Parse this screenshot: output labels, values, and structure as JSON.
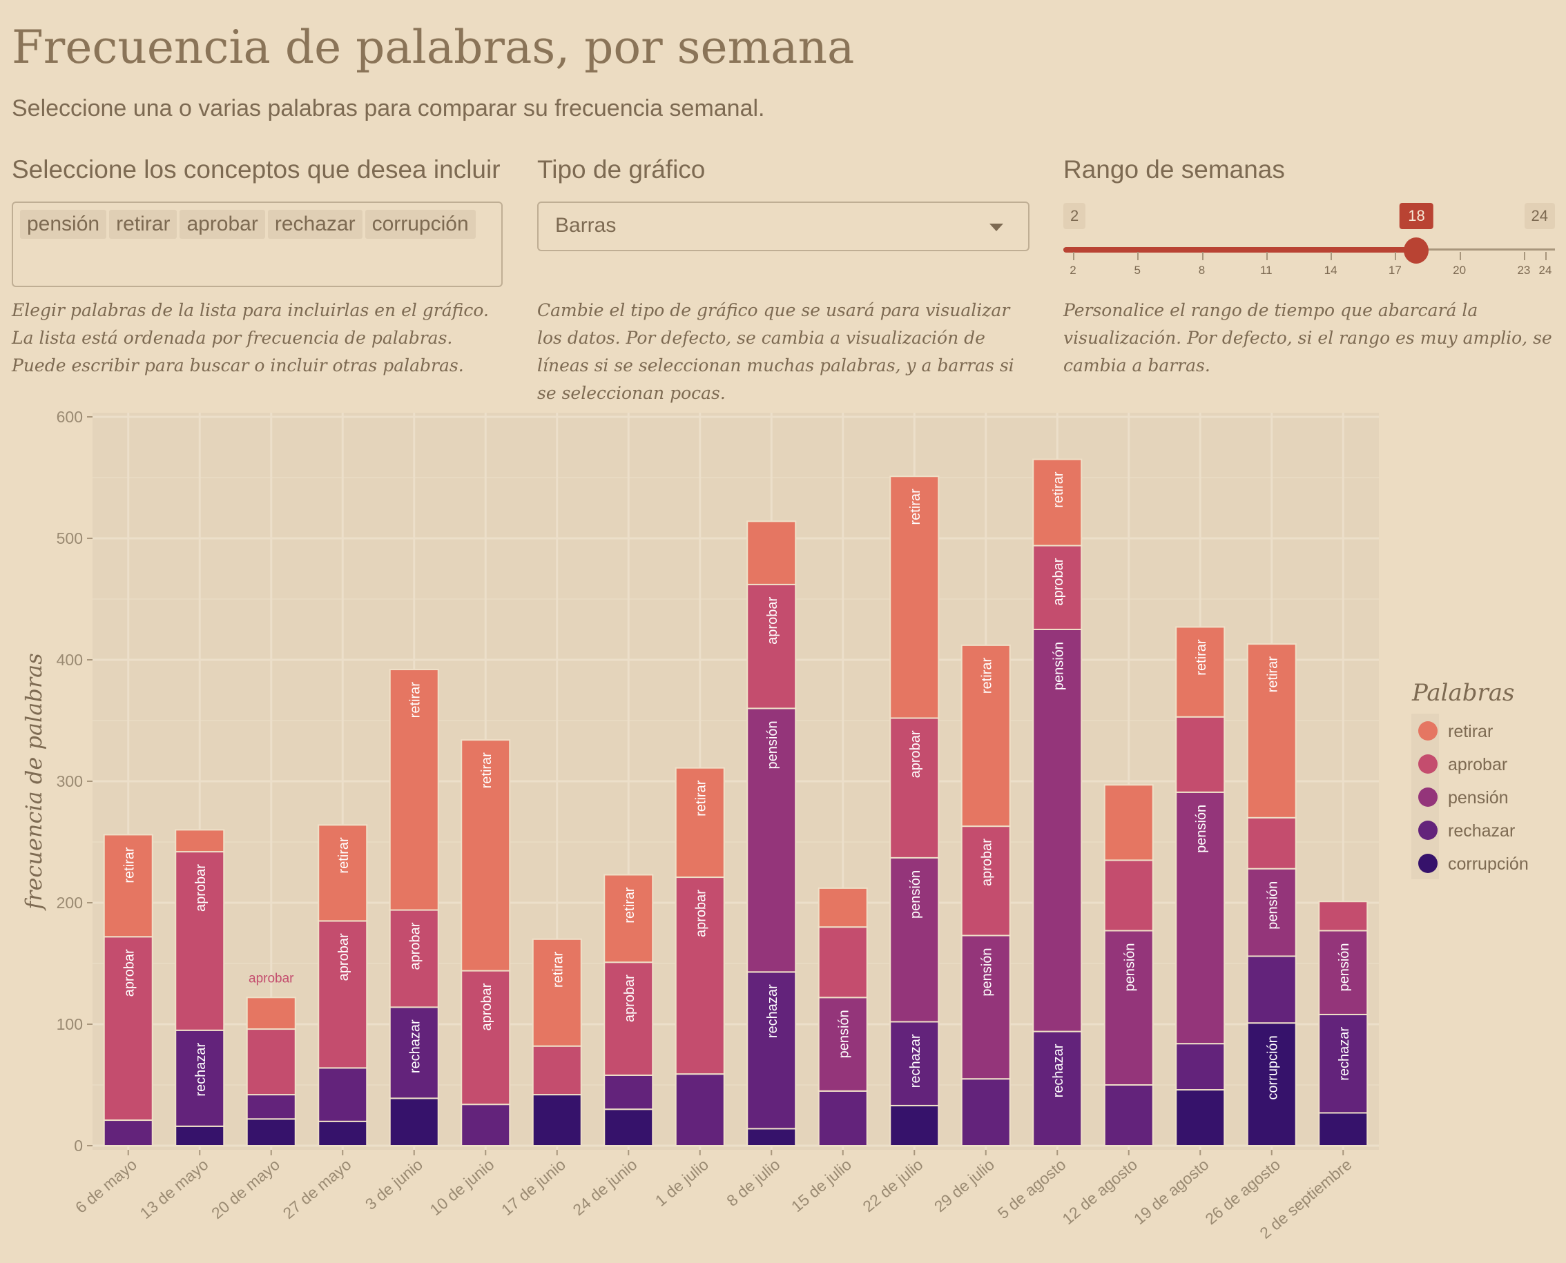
{
  "header": {
    "title": "Frecuencia de palabras, por semana",
    "subtitle": "Seleccione una o varias palabras para comparar su frecuencia semanal."
  },
  "controls": {
    "concepts": {
      "label": "Seleccione los conceptos que desea incluir",
      "selected": [
        "pensión",
        "retirar",
        "aprobar",
        "rechazar",
        "corrupción"
      ],
      "help": "Elegir palabras de la lista para incluirlas en el gráfico. La lista está ordenada por frecuencia de palabras. Puede escribir para buscar o incluir otras palabras."
    },
    "chart_type": {
      "label": "Tipo de gráfico",
      "value": "Barras",
      "help": "Cambie el tipo de gráfico que se usará para visualizar los datos. Por defecto, se cambia a visualización de líneas si se seleccionan muchas palabras, y a barras si se seleccionan pocas."
    },
    "week_range": {
      "label": "Rango de semanas",
      "min": 2,
      "max": 24,
      "value": 18,
      "min_label": "2",
      "max_label": "24",
      "value_label": "18",
      "ticks": [
        "2",
        "5",
        "8",
        "11",
        "14",
        "17",
        "20",
        "23",
        "24"
      ],
      "help": "Personalice el rango de tiempo que abarcará la visualización. Por defecto, si el rango es muy amplio, se cambia a barras."
    }
  },
  "chart_data": {
    "type": "bar",
    "stacked": true,
    "title": "",
    "xlabel": "",
    "ylabel": "frecuencia de palabras",
    "ylim": [
      0,
      600
    ],
    "yticks": [
      "0",
      "100",
      "200",
      "300",
      "400",
      "500",
      "600"
    ],
    "grid": true,
    "legend": {
      "title": "Palabras",
      "position": "right"
    },
    "categories": [
      "6 de mayo",
      "13 de mayo",
      "20 de mayo",
      "27 de mayo",
      "3 de junio",
      "10 de junio",
      "17 de junio",
      "24 de junio",
      "1 de julio",
      "8 de julio",
      "15 de julio",
      "22 de julio",
      "29 de julio",
      "5 de agosto",
      "12 de agosto",
      "19 de agosto",
      "26 de agosto",
      "2 de septiembre"
    ],
    "series": [
      {
        "name": "corrupción",
        "color": "#36126b",
        "values": [
          0,
          16,
          22,
          20,
          39,
          0,
          42,
          30,
          0,
          14,
          0,
          33,
          0,
          0,
          0,
          46,
          101,
          27
        ]
      },
      {
        "name": "rechazar",
        "color": "#63237b",
        "values": [
          21,
          79,
          20,
          44,
          75,
          34,
          0,
          28,
          59,
          129,
          45,
          69,
          55,
          94,
          50,
          38,
          55,
          81
        ]
      },
      {
        "name": "pensión",
        "color": "#94357a",
        "values": [
          0,
          0,
          0,
          0,
          0,
          0,
          0,
          0,
          0,
          217,
          77,
          135,
          118,
          331,
          127,
          207,
          72,
          69
        ]
      },
      {
        "name": "aprobar",
        "color": "#c44d6e",
        "values": [
          151,
          147,
          54,
          121,
          80,
          110,
          40,
          93,
          162,
          102,
          58,
          115,
          90,
          69,
          58,
          62,
          42,
          24
        ]
      },
      {
        "name": "retirar",
        "color": "#e57662",
        "values": [
          84,
          18,
          26,
          79,
          198,
          190,
          88,
          72,
          90,
          52,
          32,
          199,
          149,
          71,
          62,
          74,
          143,
          0
        ]
      }
    ],
    "legend_order": [
      "retirar",
      "aprobar",
      "pensión",
      "rechazar",
      "corrupción"
    ],
    "annotations": [
      {
        "category": "20 de mayo",
        "text": "aprobar"
      }
    ]
  },
  "colors": {
    "background": "#ecdcc2",
    "panel": "#e4d4bb",
    "accent": "#b94333",
    "text": "#8a7458"
  }
}
